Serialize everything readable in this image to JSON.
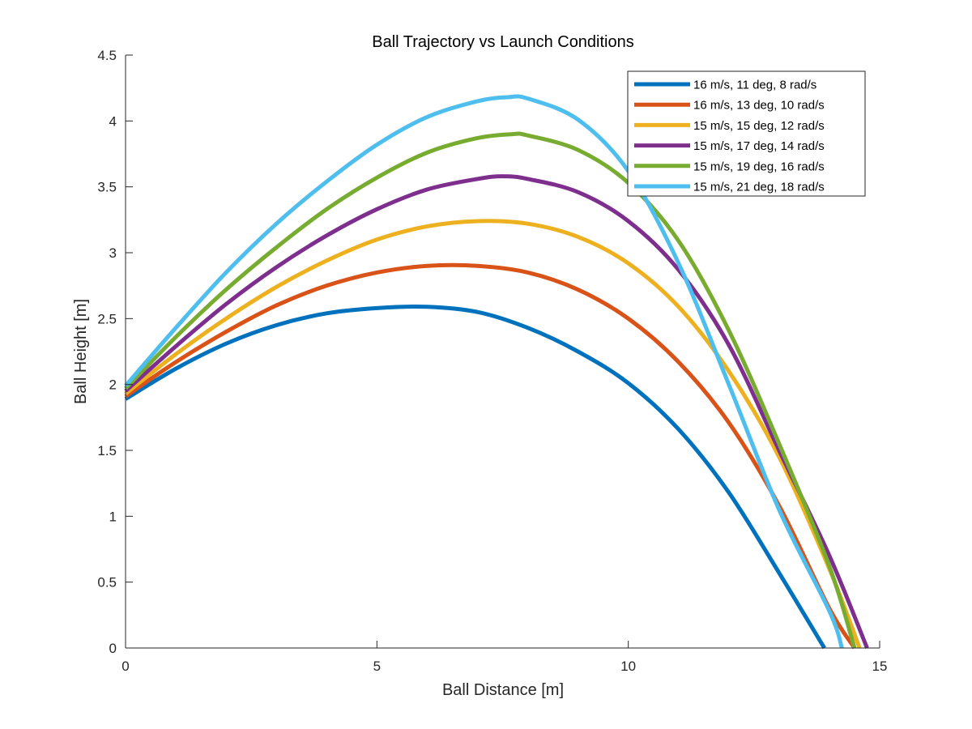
{
  "chart_data": {
    "type": "line",
    "title": "Ball Trajectory vs Launch Conditions",
    "xlabel": "Ball Distance [m]",
    "ylabel": "Ball Height [m]",
    "xlim": [
      0,
      15
    ],
    "ylim": [
      0,
      4.5
    ],
    "xticks": [
      0,
      5,
      10,
      15
    ],
    "xtick_labels": [
      "0",
      "5",
      "10",
      "15"
    ],
    "yticks": [
      0,
      0.5,
      1,
      1.5,
      2,
      2.5,
      3,
      3.5,
      4,
      4.5
    ],
    "ytick_labels": [
      "0",
      "0.5",
      "1",
      "1.5",
      "2",
      "2.5",
      "3",
      "3.5",
      "4",
      "4.5"
    ],
    "grid": false,
    "legend_position": "top-right",
    "series": [
      {
        "name": "16 m/s, 11 deg, 8 rad/s",
        "color": "#0072BD",
        "x": [
          0,
          1,
          2,
          3,
          4,
          5,
          6,
          7,
          8,
          9,
          10,
          11,
          12,
          13,
          13.9
        ],
        "y": [
          1.89,
          2.12,
          2.31,
          2.45,
          2.54,
          2.58,
          2.59,
          2.55,
          2.43,
          2.25,
          2.01,
          1.66,
          1.18,
          0.57,
          0
        ]
      },
      {
        "name": "16 m/s, 13 deg, 10 rad/s",
        "color": "#D95319",
        "x": [
          0,
          1,
          2,
          3,
          4,
          5,
          6,
          7,
          8,
          9,
          10,
          11,
          12,
          13,
          14,
          14.5
        ],
        "y": [
          1.91,
          2.17,
          2.4,
          2.6,
          2.75,
          2.85,
          2.9,
          2.9,
          2.85,
          2.72,
          2.5,
          2.17,
          1.71,
          1.08,
          0.3,
          0
        ]
      },
      {
        "name": "15 m/s, 15 deg, 12 rad/s",
        "color": "#EDB120",
        "x": [
          0,
          1,
          2,
          3,
          4,
          5,
          6,
          7,
          8,
          9,
          10,
          11,
          12,
          13,
          14,
          14.6
        ],
        "y": [
          1.93,
          2.23,
          2.5,
          2.74,
          2.94,
          3.1,
          3.2,
          3.24,
          3.22,
          3.12,
          2.92,
          2.59,
          2.1,
          1.45,
          0.6,
          0
        ]
      },
      {
        "name": "15 m/s, 17 deg, 14 rad/s",
        "color": "#7E2F8E",
        "x": [
          0,
          1,
          2,
          3,
          4,
          5,
          6,
          7,
          7.5,
          8,
          9,
          10,
          11,
          12,
          13,
          14,
          14.75
        ],
        "y": [
          1.95,
          2.29,
          2.61,
          2.89,
          3.13,
          3.33,
          3.48,
          3.56,
          3.58,
          3.56,
          3.46,
          3.24,
          2.87,
          2.3,
          1.5,
          0.7,
          0
        ]
      },
      {
        "name": "15 m/s, 19 deg, 16 rad/s",
        "color": "#77AC30",
        "x": [
          0,
          1,
          2,
          3,
          4,
          5,
          6,
          7,
          7.7,
          8,
          9,
          10,
          11,
          12,
          13,
          14,
          14.5
        ],
        "y": [
          1.97,
          2.36,
          2.72,
          3.04,
          3.33,
          3.57,
          3.76,
          3.87,
          3.9,
          3.89,
          3.78,
          3.53,
          3.09,
          2.41,
          1.55,
          0.62,
          0
        ]
      },
      {
        "name": "15 m/s, 21 deg, 18 rad/s",
        "color": "#4DBEEE",
        "x": [
          0,
          1,
          2,
          3,
          4,
          5,
          6,
          7,
          7.6,
          8,
          9,
          10,
          11,
          12,
          13,
          14,
          14.25
        ],
        "y": [
          1.99,
          2.43,
          2.85,
          3.22,
          3.54,
          3.82,
          4.03,
          4.15,
          4.18,
          4.17,
          4.01,
          3.62,
          2.92,
          2.0,
          1.05,
          0.28,
          0
        ]
      }
    ]
  }
}
